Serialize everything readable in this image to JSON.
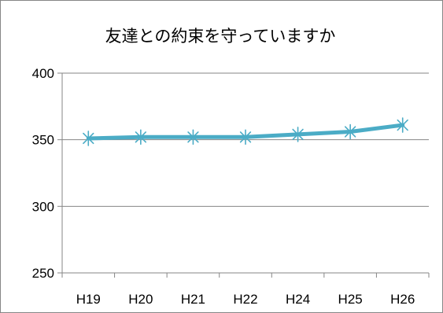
{
  "chart_data": {
    "type": "line",
    "title": "友達との約束を守っていますか",
    "xlabel": "",
    "ylabel": "",
    "categories": [
      "H19",
      "H20",
      "H21",
      "H22",
      "H24",
      "H25",
      "H26"
    ],
    "series": [
      {
        "values": [
          351,
          352,
          352,
          352,
          354,
          356,
          361
        ],
        "color": "#4bacc6",
        "marker": "asterisk"
      }
    ],
    "ylim": [
      250,
      400
    ],
    "yticks": [
      250,
      300,
      350,
      400
    ],
    "ytick_labels": [
      "250",
      "300",
      "350",
      "400"
    ],
    "grid": "horizontal",
    "legend": "none"
  }
}
